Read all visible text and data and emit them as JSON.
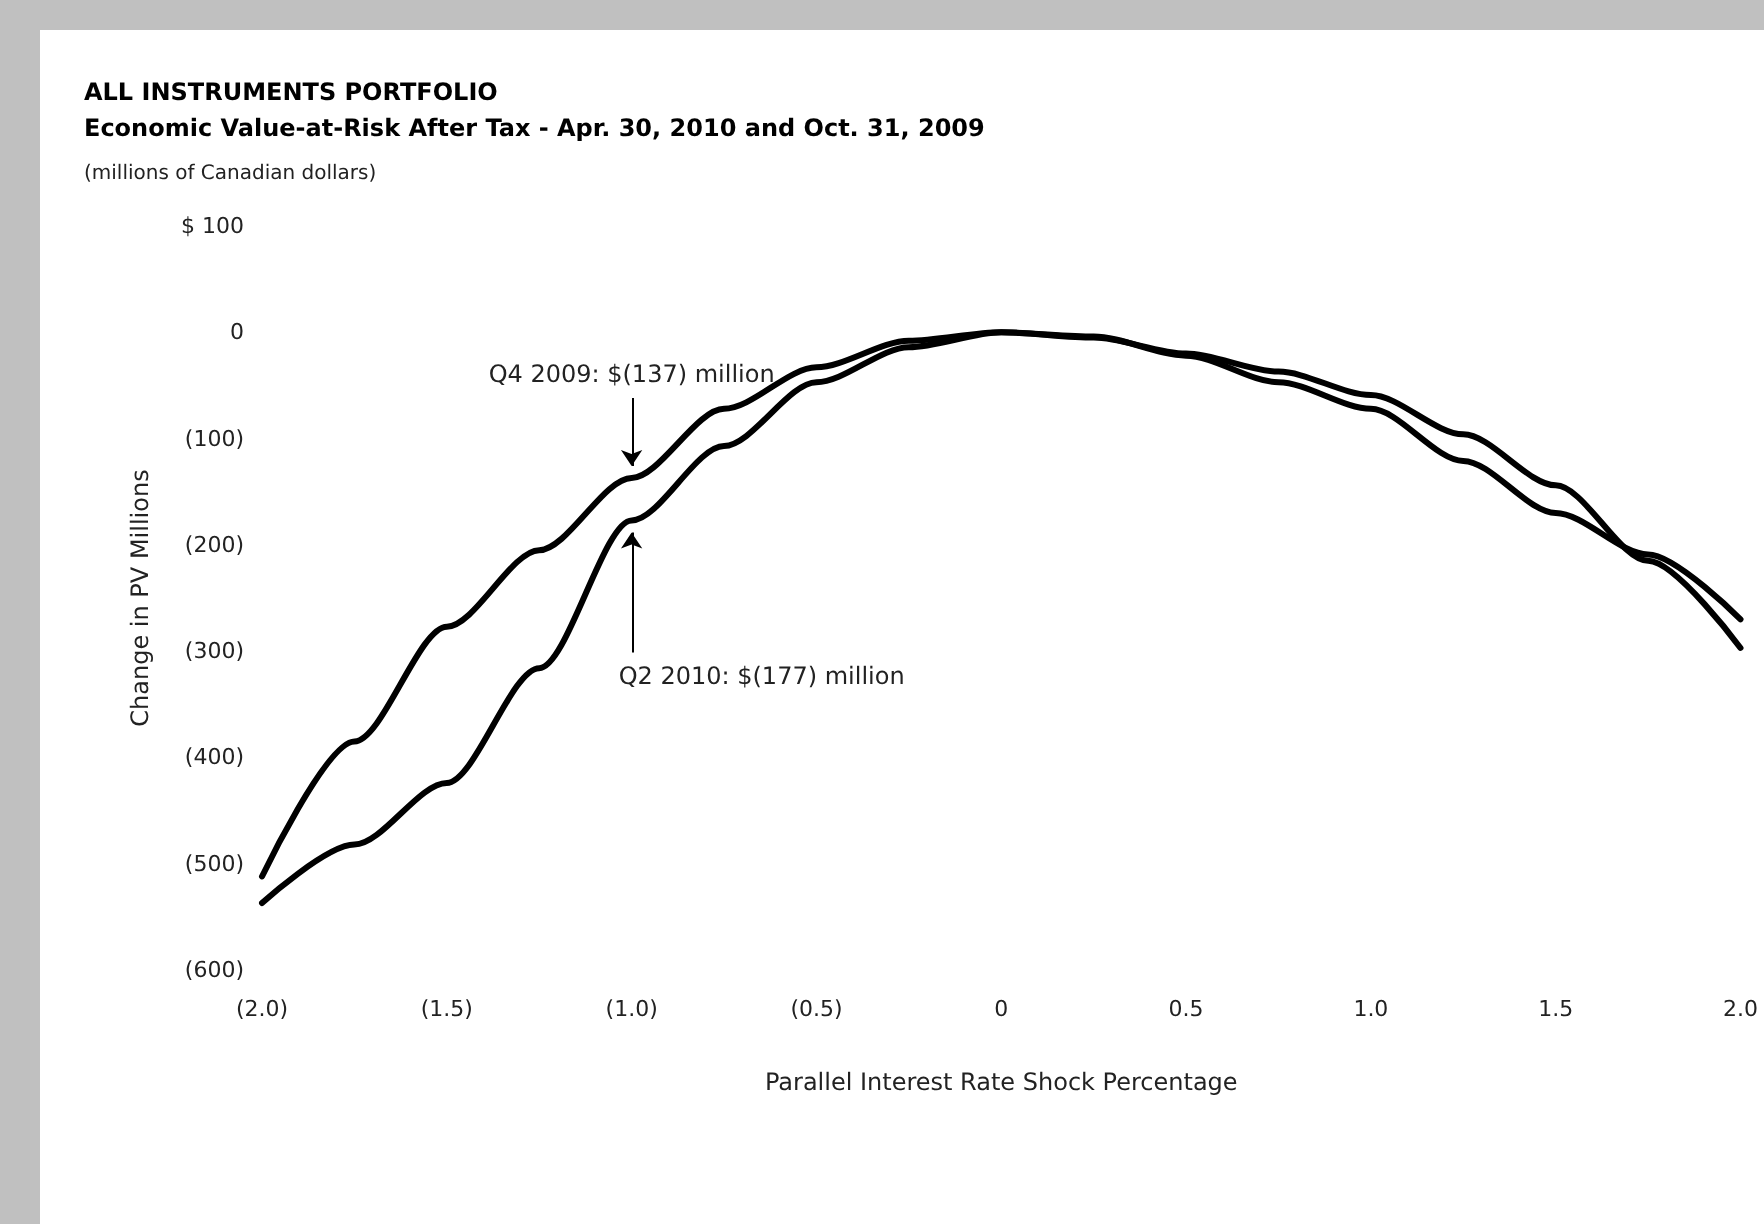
{
  "chart_data": {
    "type": "line",
    "title": "ALL INSTRUMENTS PORTFOLIO",
    "subtitle": "Economic Value-at-Risk After Tax - Apr. 30, 2010 and Oct. 31, 2009",
    "xlabel": "Parallel Interest Rate Shock Percentage",
    "ylabel": "Change in PV Millions",
    "annotations": [
      "(millions of Canadian dollars)",
      {
        "text": "Q4 2009: $(137) million",
        "x": -1.0,
        "y": -137
      },
      {
        "text": "Q2 2010: $(177) million",
        "x": -1.0,
        "y": -177
      }
    ],
    "x": [
      -2.0,
      -1.75,
      -1.5,
      -1.25,
      -1.0,
      -0.75,
      -0.5,
      -0.25,
      0,
      0.25,
      0.5,
      0.75,
      1.0,
      1.25,
      1.5,
      1.75,
      2.0
    ],
    "series": [
      {
        "color": "#000000",
        "values": [
          -512,
          -385,
          -277,
          -205,
          -137,
          -72,
          -33,
          -8,
          0,
          -4,
          -22,
          -47,
          -72,
          -121,
          -170,
          -209,
          -270
        ]
      },
      {
        "color": "#000000",
        "values": [
          -537,
          -482,
          -424,
          -316,
          -177,
          -107,
          -47,
          -14,
          0,
          -5,
          -20,
          -37,
          -59,
          -96,
          -144,
          -215,
          -297
        ]
      }
    ],
    "xlim": [
      -2.0,
      2.0
    ],
    "ylim": [
      -600,
      100
    ],
    "xticks": [
      {
        "value": -2.0,
        "label": "(2.0)"
      },
      {
        "value": -1.5,
        "label": "(1.5)"
      },
      {
        "value": -1.0,
        "label": "(1.0)"
      },
      {
        "value": -0.5,
        "label": "(0.5)"
      },
      0,
      {
        "value": 0.5,
        "label": "0.5"
      },
      {
        "value": 1.0,
        "label": "1.0"
      },
      {
        "value": 1.5,
        "label": "1.5"
      },
      {
        "value": 2.0,
        "label": "2.0"
      }
    ],
    "yticks": [
      {
        "value": -600,
        "label": "(600)"
      },
      {
        "value": -500,
        "label": "(500)"
      },
      {
        "value": -400,
        "label": "(400)"
      },
      {
        "value": -300,
        "label": "(300)"
      },
      {
        "value": -200,
        "label": "(200)"
      },
      {
        "value": -100,
        "label": "(100)"
      },
      0,
      {
        "value": 100,
        "label": "$ 100"
      }
    ],
    "grid": false,
    "marker": "none",
    "line_style": "solid"
  }
}
